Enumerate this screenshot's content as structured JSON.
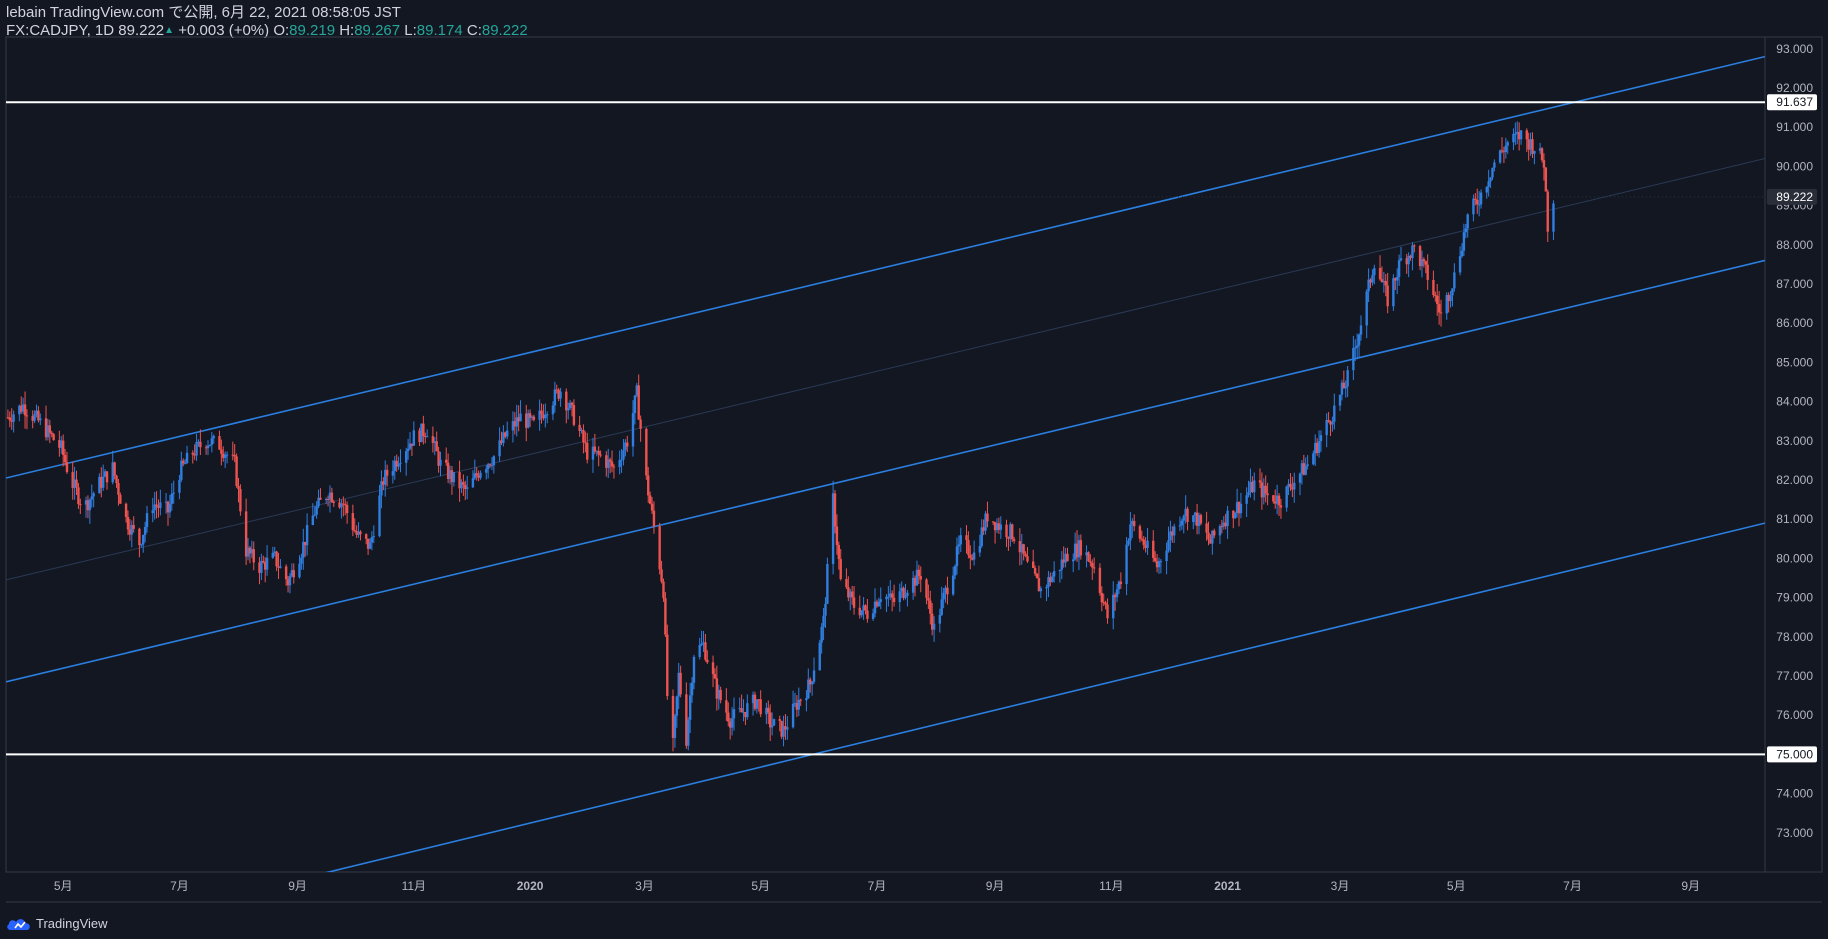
{
  "header": {
    "line1": "lebain TradingView.com で公開, 6月 22, 2021 08:58:05 JST",
    "symbol": "FX:CADJPY, 1D",
    "last": "89.222",
    "up_arrow": "▲",
    "change": "+0.003 (+0%)",
    "o_label": "O:",
    "o": "89.219",
    "h_label": "H:",
    "h": "89.267",
    "l_label": "L:",
    "l": "89.174",
    "c_label": "C:",
    "c": "89.222"
  },
  "footer": {
    "brand": "TradingView",
    "logo_icon": "tradingview-cloud-icon"
  },
  "colors": {
    "background": "#131722",
    "up": "#2962ff",
    "up_candle": "#2f7ee0",
    "down_candle": "#ef5350",
    "channel": "#2a7fe0",
    "horizontal": "#ffffff",
    "axis_text": "#b2b5be",
    "label_up": "#26a69a"
  },
  "chart_data": {
    "type": "candlestick",
    "symbol": "FX:CADJPY",
    "interval": "1D",
    "title": "",
    "xlabel": "",
    "ylabel": "",
    "ylim": [
      72.0,
      93.3
    ],
    "x_range": [
      "2019-04-01",
      "2021-10-10"
    ],
    "y_ticks": [
      "73.000",
      "74.000",
      "75.000",
      "76.000",
      "77.000",
      "78.000",
      "79.000",
      "80.000",
      "81.000",
      "82.000",
      "83.000",
      "84.000",
      "85.000",
      "86.000",
      "87.000",
      "88.000",
      "89.000",
      "90.000",
      "91.000",
      "92.000",
      "93.000"
    ],
    "x_ticks": [
      {
        "label": "5月",
        "date": "2019-05-01"
      },
      {
        "label": "7月",
        "date": "2019-07-01"
      },
      {
        "label": "9月",
        "date": "2019-09-01"
      },
      {
        "label": "11月",
        "date": "2019-11-01"
      },
      {
        "label": "2020",
        "date": "2020-01-01"
      },
      {
        "label": "3月",
        "date": "2020-03-01"
      },
      {
        "label": "5月",
        "date": "2020-05-01"
      },
      {
        "label": "7月",
        "date": "2020-07-01"
      },
      {
        "label": "9月",
        "date": "2020-09-01"
      },
      {
        "label": "11月",
        "date": "2020-11-01"
      },
      {
        "label": "2021",
        "date": "2021-01-01"
      },
      {
        "label": "3月",
        "date": "2021-03-01"
      },
      {
        "label": "5月",
        "date": "2021-05-01"
      },
      {
        "label": "7月",
        "date": "2021-07-01"
      },
      {
        "label": "9月",
        "date": "2021-09-01"
      }
    ],
    "price_path": [
      [
        "2019-04-02",
        83.6
      ],
      [
        "2019-04-10",
        83.9
      ],
      [
        "2019-04-20",
        83.4
      ],
      [
        "2019-04-30",
        82.8
      ],
      [
        "2019-05-05",
        82.0
      ],
      [
        "2019-05-12",
        81.3
      ],
      [
        "2019-05-20",
        81.9
      ],
      [
        "2019-05-27",
        82.3
      ],
      [
        "2019-06-03",
        81.0
      ],
      [
        "2019-06-10",
        80.4
      ],
      [
        "2019-06-17",
        81.4
      ],
      [
        "2019-06-25",
        81.2
      ],
      [
        "2019-07-01",
        82.2
      ],
      [
        "2019-07-08",
        82.7
      ],
      [
        "2019-07-15",
        83.0
      ],
      [
        "2019-07-22",
        82.9
      ],
      [
        "2019-07-30",
        82.4
      ],
      [
        "2019-08-05",
        80.2
      ],
      [
        "2019-08-12",
        79.8
      ],
      [
        "2019-08-20",
        80.0
      ],
      [
        "2019-08-27",
        79.4
      ],
      [
        "2019-09-03",
        80.2
      ],
      [
        "2019-09-10",
        81.2
      ],
      [
        "2019-09-17",
        81.7
      ],
      [
        "2019-09-25",
        81.4
      ],
      [
        "2019-10-02",
        80.6
      ],
      [
        "2019-10-09",
        80.3
      ],
      [
        "2019-10-16",
        82.0
      ],
      [
        "2019-10-24",
        82.6
      ],
      [
        "2019-11-01",
        83.1
      ],
      [
        "2019-11-08",
        83.3
      ],
      [
        "2019-11-15",
        82.4
      ],
      [
        "2019-11-22",
        82.0
      ],
      [
        "2019-11-29",
        81.7
      ],
      [
        "2019-12-06",
        82.3
      ],
      [
        "2019-12-13",
        82.6
      ],
      [
        "2019-12-20",
        83.2
      ],
      [
        "2019-12-27",
        83.6
      ],
      [
        "2020-01-03",
        83.4
      ],
      [
        "2020-01-10",
        83.9
      ],
      [
        "2020-01-17",
        84.3
      ],
      [
        "2020-01-24",
        83.6
      ],
      [
        "2020-01-31",
        82.7
      ],
      [
        "2020-02-07",
        82.6
      ],
      [
        "2020-02-14",
        82.3
      ],
      [
        "2020-02-21",
        83.0
      ],
      [
        "2020-02-26",
        84.2
      ],
      [
        "2020-03-02",
        82.0
      ],
      [
        "2020-03-06",
        80.8
      ],
      [
        "2020-03-11",
        79.2
      ],
      [
        "2020-03-13",
        76.5
      ],
      [
        "2020-03-16",
        75.2
      ],
      [
        "2020-03-19",
        77.0
      ],
      [
        "2020-03-23",
        75.4
      ],
      [
        "2020-03-27",
        77.6
      ],
      [
        "2020-04-01",
        77.8
      ],
      [
        "2020-04-08",
        76.6
      ],
      [
        "2020-04-15",
        75.9
      ],
      [
        "2020-04-22",
        76.1
      ],
      [
        "2020-04-29",
        76.4
      ],
      [
        "2020-05-06",
        75.8
      ],
      [
        "2020-05-13",
        75.6
      ],
      [
        "2020-05-20",
        76.3
      ],
      [
        "2020-05-27",
        76.8
      ],
      [
        "2020-06-03",
        78.4
      ],
      [
        "2020-06-08",
        81.5
      ],
      [
        "2020-06-12",
        79.4
      ],
      [
        "2020-06-19",
        78.8
      ],
      [
        "2020-06-26",
        78.6
      ],
      [
        "2020-07-03",
        79.1
      ],
      [
        "2020-07-10",
        78.9
      ],
      [
        "2020-07-17",
        79.3
      ],
      [
        "2020-07-24",
        79.6
      ],
      [
        "2020-07-31",
        78.2
      ],
      [
        "2020-08-07",
        79.3
      ],
      [
        "2020-08-14",
        80.4
      ],
      [
        "2020-08-21",
        80.1
      ],
      [
        "2020-08-28",
        81.1
      ],
      [
        "2020-09-04",
        80.8
      ],
      [
        "2020-09-11",
        80.6
      ],
      [
        "2020-09-18",
        79.8
      ],
      [
        "2020-09-25",
        79.2
      ],
      [
        "2020-10-02",
        79.6
      ],
      [
        "2020-10-09",
        80.1
      ],
      [
        "2020-10-16",
        80.3
      ],
      [
        "2020-10-23",
        79.8
      ],
      [
        "2020-10-30",
        78.5
      ],
      [
        "2020-11-06",
        79.5
      ],
      [
        "2020-11-11",
        80.9
      ],
      [
        "2020-11-18",
        80.4
      ],
      [
        "2020-11-25",
        79.8
      ],
      [
        "2020-12-02",
        80.6
      ],
      [
        "2020-12-09",
        81.2
      ],
      [
        "2020-12-16",
        81.0
      ],
      [
        "2020-12-23",
        80.4
      ],
      [
        "2020-12-30",
        81.0
      ],
      [
        "2021-01-08",
        81.4
      ],
      [
        "2021-01-15",
        81.9
      ],
      [
        "2021-01-22",
        81.6
      ],
      [
        "2021-01-29",
        81.5
      ],
      [
        "2021-02-05",
        82.0
      ],
      [
        "2021-02-12",
        82.4
      ],
      [
        "2021-02-19",
        83.1
      ],
      [
        "2021-02-26",
        83.8
      ],
      [
        "2021-03-05",
        84.6
      ],
      [
        "2021-03-12",
        86.0
      ],
      [
        "2021-03-19",
        87.6
      ],
      [
        "2021-03-26",
        86.6
      ],
      [
        "2021-04-02",
        87.6
      ],
      [
        "2021-04-09",
        87.9
      ],
      [
        "2021-04-16",
        87.2
      ],
      [
        "2021-04-23",
        86.2
      ],
      [
        "2021-04-30",
        87.2
      ],
      [
        "2021-05-07",
        88.7
      ],
      [
        "2021-05-14",
        89.3
      ],
      [
        "2021-05-21",
        90.1
      ],
      [
        "2021-05-28",
        90.6
      ],
      [
        "2021-06-04",
        90.8
      ],
      [
        "2021-06-11",
        90.5
      ],
      [
        "2021-06-16",
        90.1
      ],
      [
        "2021-06-18",
        88.5
      ],
      [
        "2021-06-21",
        89.222
      ]
    ],
    "horizontal_lines": [
      {
        "price": 91.637,
        "label": "91.637"
      },
      {
        "price": 75.0,
        "label": "75.000"
      }
    ],
    "last_price_label": "89.222",
    "channel_lines": [
      {
        "name": "upper",
        "points": [
          [
            "2019-04-01",
            82.05
          ],
          [
            "2021-10-10",
            92.8
          ]
        ]
      },
      {
        "name": "middle",
        "points": [
          [
            "2019-04-01",
            76.85
          ],
          [
            "2021-10-10",
            87.6
          ]
        ]
      },
      {
        "name": "lower",
        "points": [
          [
            "2019-04-01",
            70.0
          ],
          [
            "2021-10-10",
            80.9
          ]
        ]
      }
    ],
    "midline": {
      "points": [
        [
          "2019-04-01",
          79.45
        ],
        [
          "2021-10-10",
          90.2
        ]
      ]
    }
  }
}
